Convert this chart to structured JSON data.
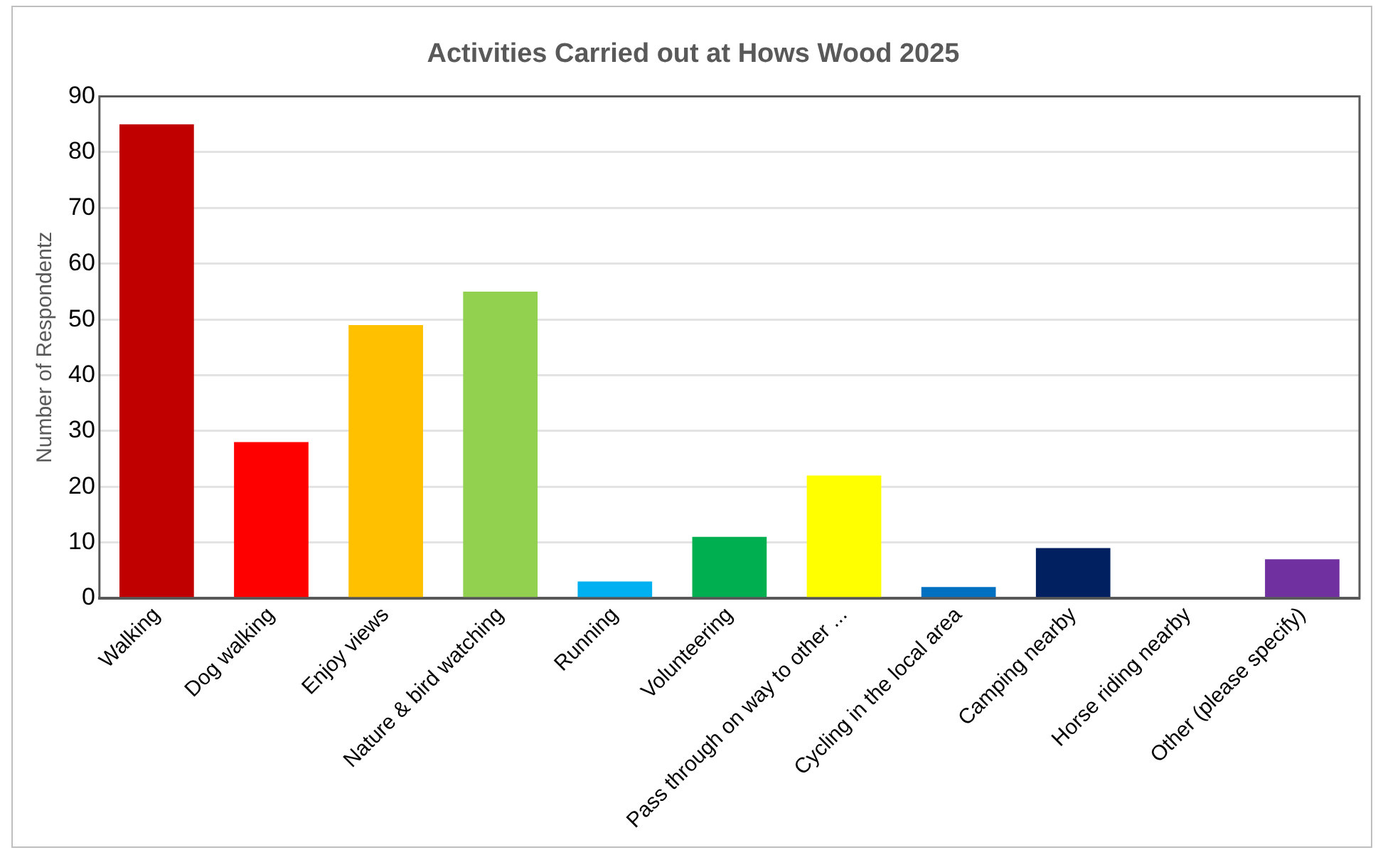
{
  "chart_data": {
    "type": "bar",
    "title": "Activities Carried out at Hows Wood 2025",
    "ylabel": "Number of Respondentz",
    "categories": [
      "Walking",
      "Dog walking",
      "Enjoy views",
      "Nature & bird watching",
      "Running",
      "Volunteering",
      "Pass through on way to other ...",
      "Cycling in the local area",
      "Camping nearby",
      "Horse riding nearby",
      "Other (please specify)"
    ],
    "values": [
      85,
      28,
      49,
      55,
      3,
      11,
      22,
      2,
      9,
      0,
      7
    ],
    "colors": [
      "#c00000",
      "#ff0000",
      "#ffc000",
      "#92d050",
      "#00b0f0",
      "#00b050",
      "#ffff00",
      "#0070c0",
      "#002060",
      "#7f7f7f",
      "#7030a0"
    ],
    "ylim": [
      0,
      90
    ],
    "yticks": [
      0,
      10,
      20,
      30,
      40,
      50,
      60,
      70,
      80,
      90
    ],
    "grid": "y",
    "legend": false
  }
}
